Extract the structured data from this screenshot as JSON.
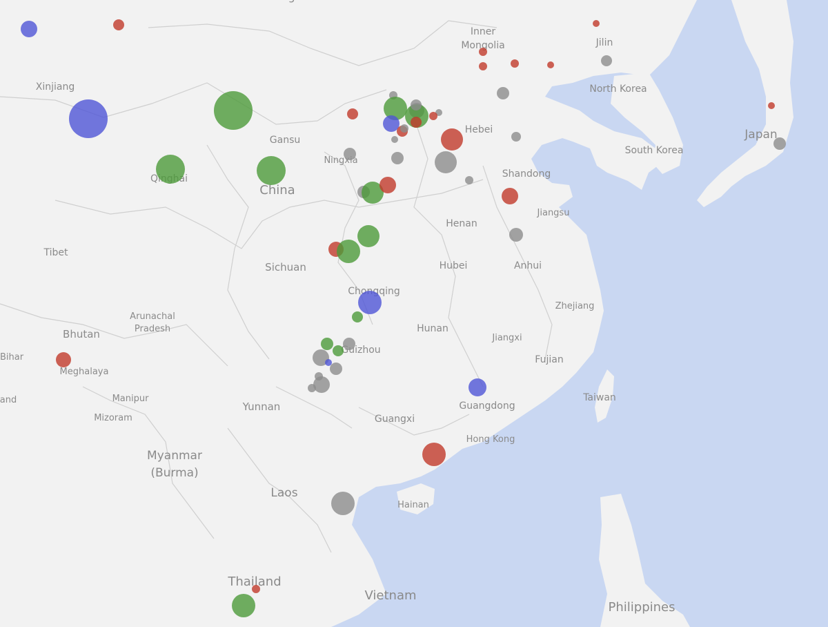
{
  "map": {
    "colors": {
      "land": "#f2f2f2",
      "water": "#c9d7f2",
      "border": "#cfcfcf",
      "label": "#8a8a8a",
      "green": "#4c9a3a",
      "blue": "#4f55d6",
      "red": "#c0392b",
      "gray": "#8c8c8c"
    },
    "labels": [
      {
        "id": "mongolia",
        "text": "Mongolia"
      },
      {
        "id": "inner-mongolia-1",
        "text": "Inner"
      },
      {
        "id": "inner-mongolia-2",
        "text": "Mongolia"
      },
      {
        "id": "jilin",
        "text": "Jilin"
      },
      {
        "id": "xinjiang",
        "text": "Xinjiang"
      },
      {
        "id": "north-korea",
        "text": "North Korea"
      },
      {
        "id": "hebei",
        "text": "Hebei"
      },
      {
        "id": "gansu",
        "text": "Gansu"
      },
      {
        "id": "ningxia",
        "text": "Ningxia"
      },
      {
        "id": "japan",
        "text": "Japan"
      },
      {
        "id": "south-korea",
        "text": "South Korea"
      },
      {
        "id": "qinghai",
        "text": "Qinghai"
      },
      {
        "id": "china",
        "text": "China"
      },
      {
        "id": "shandong",
        "text": "Shandong"
      },
      {
        "id": "jiangsu",
        "text": "Jiangsu"
      },
      {
        "id": "henan",
        "text": "Henan"
      },
      {
        "id": "tibet",
        "text": "Tibet"
      },
      {
        "id": "sichuan",
        "text": "Sichuan"
      },
      {
        "id": "hubei",
        "text": "Hubei"
      },
      {
        "id": "anhui",
        "text": "Anhui"
      },
      {
        "id": "chongqing",
        "text": "Chongqing"
      },
      {
        "id": "zhejiang",
        "text": "Zhejiang"
      },
      {
        "id": "arunachal-1",
        "text": "Arunachal"
      },
      {
        "id": "arunachal-2",
        "text": "Pradesh"
      },
      {
        "id": "bhutan",
        "text": "Bhutan"
      },
      {
        "id": "hunan",
        "text": "Hunan"
      },
      {
        "id": "jiangxi",
        "text": "Jiangxi"
      },
      {
        "id": "bihar",
        "text": "Bihar"
      },
      {
        "id": "guizhou",
        "text": "Guizhou"
      },
      {
        "id": "fujian",
        "text": "Fujian"
      },
      {
        "id": "meghalaya",
        "text": "Meghalaya"
      },
      {
        "id": "taiwan",
        "text": "Taiwan"
      },
      {
        "id": "manipur",
        "text": "Manipur"
      },
      {
        "id": "land-partial",
        "text": "and"
      },
      {
        "id": "yunnan",
        "text": "Yunnan"
      },
      {
        "id": "guangdong",
        "text": "Guangdong"
      },
      {
        "id": "mizoram",
        "text": "Mizoram"
      },
      {
        "id": "guangxi",
        "text": "Guangxi"
      },
      {
        "id": "hong-kong",
        "text": "Hong Kong"
      },
      {
        "id": "myanmar-1",
        "text": "Myanmar"
      },
      {
        "id": "myanmar-2",
        "text": "(Burma)"
      },
      {
        "id": "laos",
        "text": "Laos"
      },
      {
        "id": "hainan",
        "text": "Hainan"
      },
      {
        "id": "thailand",
        "text": "Thailand"
      },
      {
        "id": "vietnam",
        "text": "Vietnam"
      },
      {
        "id": "philippines",
        "text": "Philippines"
      }
    ],
    "markers": [
      {
        "color": "blue"
      },
      {
        "color": "red"
      },
      {
        "color": "red"
      },
      {
        "color": "red"
      },
      {
        "color": "red"
      },
      {
        "color": "red"
      },
      {
        "color": "red"
      },
      {
        "color": "gray"
      },
      {
        "color": "gray"
      },
      {
        "color": "blue"
      },
      {
        "color": "green"
      },
      {
        "color": "gray"
      },
      {
        "color": "green"
      },
      {
        "color": "gray"
      },
      {
        "color": "gray"
      },
      {
        "color": "green"
      },
      {
        "color": "red"
      },
      {
        "color": "red"
      },
      {
        "color": "blue"
      },
      {
        "color": "red"
      },
      {
        "color": "red"
      },
      {
        "color": "gray"
      },
      {
        "color": "gray"
      },
      {
        "color": "red"
      },
      {
        "color": "red"
      },
      {
        "color": "gray"
      },
      {
        "color": "gray"
      },
      {
        "color": "gray"
      },
      {
        "color": "gray"
      },
      {
        "color": "gray"
      },
      {
        "color": "green"
      },
      {
        "color": "green"
      },
      {
        "color": "green"
      },
      {
        "color": "red"
      },
      {
        "color": "gray"
      },
      {
        "color": "red"
      },
      {
        "color": "green"
      },
      {
        "color": "gray"
      },
      {
        "color": "red"
      },
      {
        "color": "green"
      },
      {
        "color": "blue"
      },
      {
        "color": "green"
      },
      {
        "color": "green"
      },
      {
        "color": "gray"
      },
      {
        "color": "green"
      },
      {
        "color": "gray"
      },
      {
        "color": "gray"
      },
      {
        "color": "blue"
      },
      {
        "color": "red"
      },
      {
        "color": "gray"
      },
      {
        "color": "gray"
      },
      {
        "color": "gray"
      },
      {
        "color": "blue"
      },
      {
        "color": "gray"
      },
      {
        "color": "red"
      },
      {
        "color": "green"
      },
      {
        "color": "red"
      },
      {
        "color": "gray"
      },
      {
        "color": "gray"
      },
      {
        "color": "gray"
      }
    ]
  }
}
